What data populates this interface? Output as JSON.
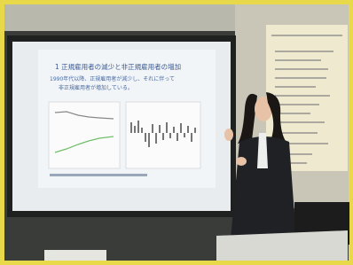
{
  "slide": {
    "title": "1 正規雇用者の減少と非正規雇用者の増加",
    "body_lines": [
      "1990年代以降、正規雇用者が減少し、それに伴って",
      "非正規雇用者が増加している。"
    ]
  }
}
